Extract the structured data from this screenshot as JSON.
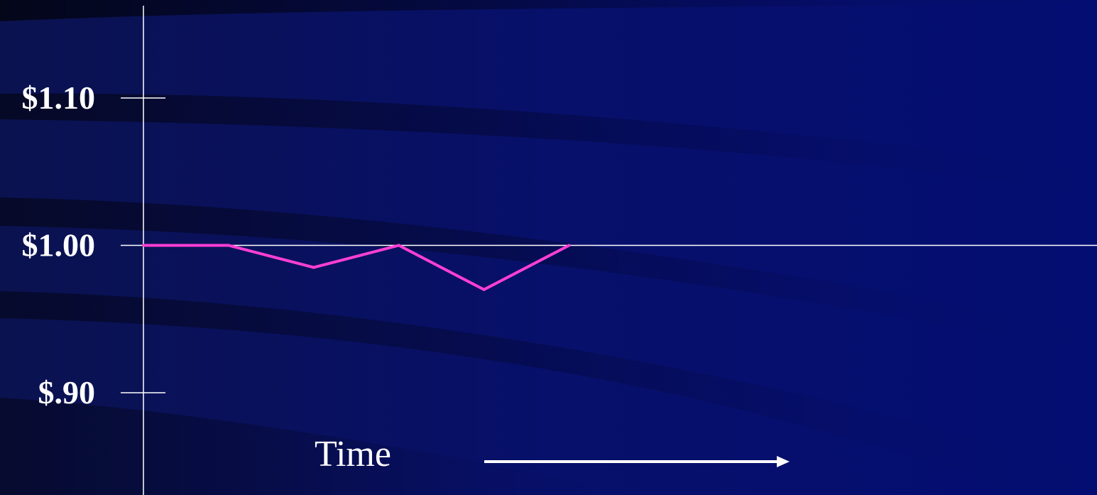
{
  "chart_data": {
    "type": "line",
    "title": "",
    "xlabel": "Time",
    "ylabel": "",
    "x": [
      0,
      1,
      2,
      3,
      4,
      5
    ],
    "series": [
      {
        "values": [
          1.0,
          1.0,
          0.985,
          1.0,
          0.97,
          1.0
        ]
      }
    ],
    "x_range": [
      0,
      11.2
    ],
    "ylim": [
      0.9,
      1.1
    ],
    "y_ticks": [
      {
        "value": 1.1,
        "label": "$1.10"
      },
      {
        "value": 1.0,
        "label": "$1.00"
      },
      {
        "value": 0.9,
        "label": "$.90"
      }
    ],
    "reference_lines": [
      1.0
    ],
    "grid": false,
    "legend": "none"
  },
  "colors": {
    "background": "#0a0f5a",
    "series_line": "#ff3fd4",
    "axis": "#ffffff"
  },
  "axis": {
    "time_label": "Time"
  }
}
